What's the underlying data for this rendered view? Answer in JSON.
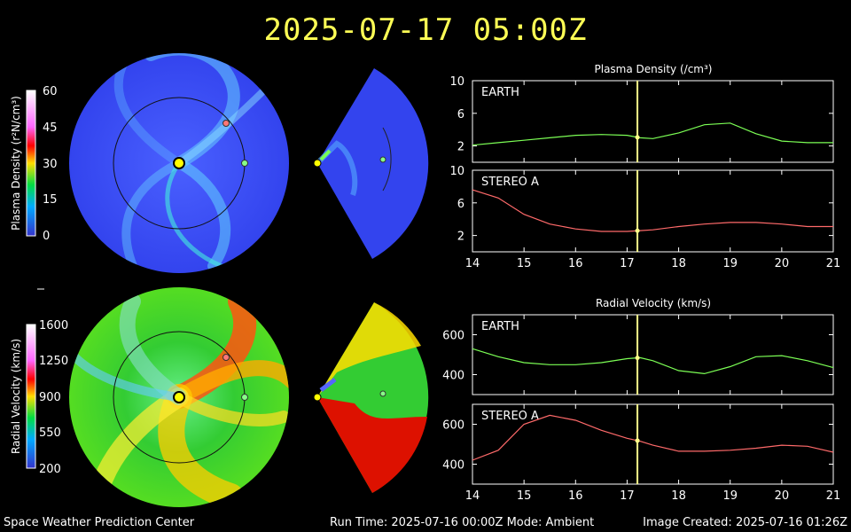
{
  "timestamp": "2025-07-17  05:00Z",
  "footer": {
    "left": "Space Weather Prediction Center",
    "center": "Run Time: 2025-07-16 00:00Z  Mode: Ambient",
    "right": "Image Created: 2025-07-16 01:26Z"
  },
  "colors": {
    "title": "#ffff55",
    "earth_series": "#7cff55",
    "stereo_series": "#ff6a6a",
    "time_marker": "#ffff88",
    "density_map_base": "#3344ee",
    "velocity_map_base": "#22cc44"
  },
  "colorbars": {
    "density": {
      "label": "Plasma Density (r²N/cm³)",
      "ticks": [
        "60",
        "45",
        "30",
        "15",
        "0"
      ]
    },
    "velocity": {
      "label": "Radial Velocity (km/s)",
      "ticks": [
        "1600",
        "1250",
        "900",
        "550",
        "200"
      ]
    }
  },
  "panels": {
    "density_title": "Plasma Density (/cm³)",
    "velocity_title": "Radial Velocity (km/s)"
  },
  "chart_data": [
    {
      "type": "line",
      "title": "Plasma Density (/cm³)",
      "panel": "EARTH",
      "x": [
        14,
        14.5,
        15,
        15.5,
        16,
        16.5,
        17,
        17.25,
        17.5,
        18,
        18.5,
        19,
        19.5,
        20,
        20.5,
        21
      ],
      "y": [
        2.1,
        2.4,
        2.7,
        3.0,
        3.3,
        3.4,
        3.3,
        3.0,
        2.9,
        3.6,
        4.6,
        4.8,
        3.5,
        2.6,
        2.4,
        2.4
      ],
      "xlim": [
        14,
        21
      ],
      "ylim": [
        0,
        10
      ],
      "yticks": [
        2,
        6,
        10
      ],
      "xticks": [
        14,
        15,
        16,
        17,
        18,
        19,
        20,
        21
      ]
    },
    {
      "type": "line",
      "title": "",
      "panel": "STEREO A",
      "x": [
        14,
        14.5,
        15,
        15.5,
        16,
        16.5,
        17,
        17.25,
        17.5,
        18,
        18.5,
        19,
        19.5,
        20,
        20.5,
        21
      ],
      "y": [
        7.6,
        6.6,
        4.6,
        3.4,
        2.8,
        2.5,
        2.5,
        2.6,
        2.7,
        3.1,
        3.4,
        3.6,
        3.6,
        3.4,
        3.1,
        3.1
      ],
      "xlim": [
        14,
        21
      ],
      "ylim": [
        0,
        10
      ],
      "yticks": [
        2,
        6,
        10
      ],
      "xticks": [
        14,
        15,
        16,
        17,
        18,
        19,
        20,
        21
      ]
    },
    {
      "type": "line",
      "title": "Radial Velocity (km/s)",
      "panel": "EARTH",
      "x": [
        14,
        14.5,
        15,
        15.5,
        16,
        16.5,
        17,
        17.25,
        17.5,
        18,
        18.5,
        19,
        19.5,
        20,
        20.5,
        21
      ],
      "y": [
        530,
        490,
        460,
        450,
        450,
        460,
        480,
        485,
        470,
        420,
        405,
        440,
        490,
        495,
        470,
        435
      ],
      "xlim": [
        14,
        21
      ],
      "ylim": [
        300,
        700
      ],
      "yticks": [
        400,
        600
      ],
      "xticks": [
        14,
        15,
        16,
        17,
        18,
        19,
        20,
        21
      ]
    },
    {
      "type": "line",
      "title": "",
      "panel": "STEREO A",
      "x": [
        14,
        14.5,
        15,
        15.5,
        16,
        16.5,
        17,
        17.25,
        17.5,
        18,
        18.5,
        19,
        19.5,
        20,
        20.5,
        21
      ],
      "y": [
        420,
        470,
        600,
        645,
        620,
        570,
        530,
        515,
        495,
        465,
        465,
        470,
        480,
        495,
        490,
        460
      ],
      "xlim": [
        14,
        21
      ],
      "ylim": [
        300,
        700
      ],
      "yticks": [
        400,
        600
      ],
      "xticks": [
        14,
        15,
        16,
        17,
        18,
        19,
        20,
        21
      ]
    }
  ],
  "marker_day": 17.2
}
